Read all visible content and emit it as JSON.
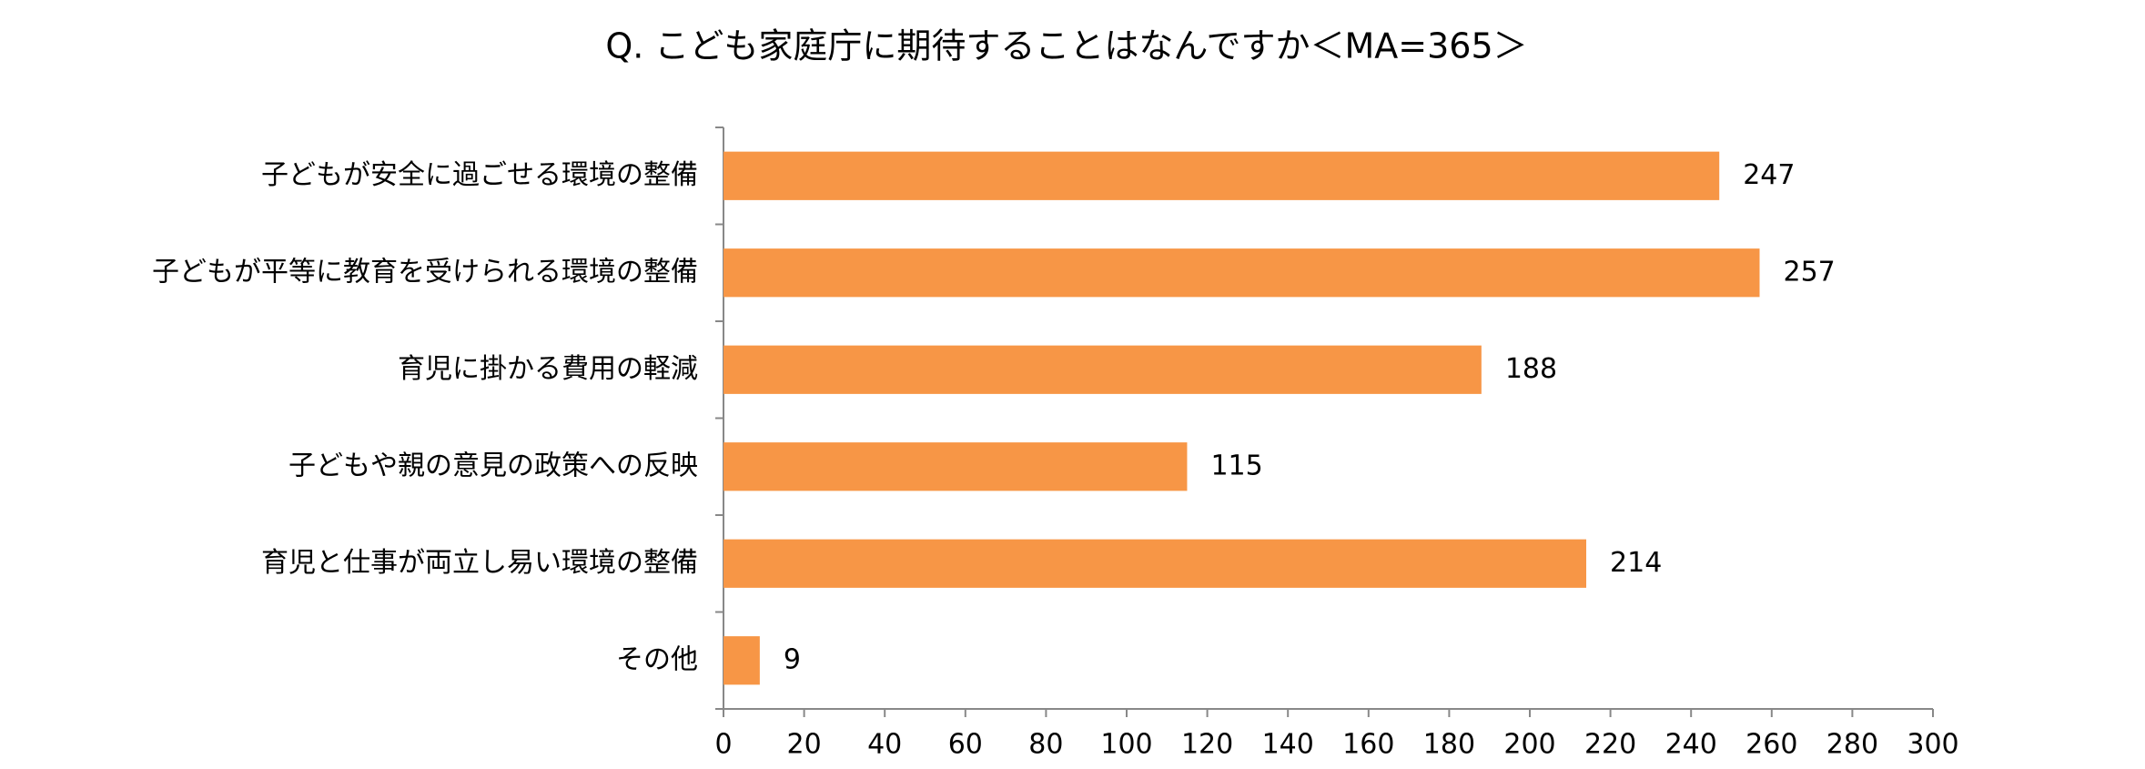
{
  "chart_data": {
    "type": "bar",
    "orientation": "horizontal",
    "title": "Q. こども家庭庁に期待することはなんですか＜MA=365＞",
    "categories": [
      "子どもが安全に過ごせる環境の整備",
      "子どもが平等に教育を受けられる環境の整備",
      "育児に掛かる費用の軽減",
      "子どもや親の意見の政策への反映",
      "育児と仕事が両立し易い環境の整備",
      "その他"
    ],
    "values": [
      247,
      257,
      188,
      115,
      214,
      9
    ],
    "color": "#f79646",
    "xlim": [
      0,
      300
    ],
    "xticks": [
      0,
      20,
      40,
      60,
      80,
      100,
      120,
      140,
      160,
      180,
      200,
      220,
      240,
      260,
      280,
      300
    ],
    "grid": false
  }
}
